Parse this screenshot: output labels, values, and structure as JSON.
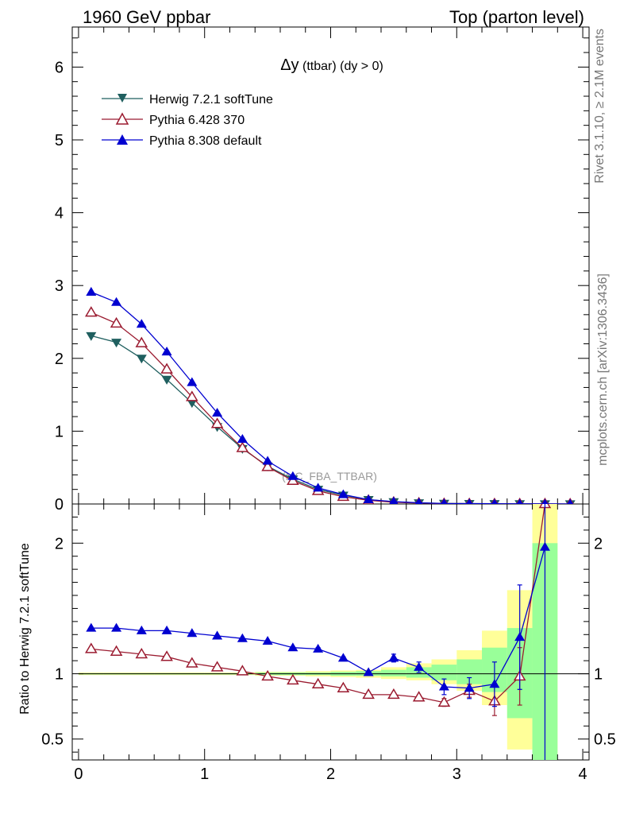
{
  "header": {
    "left": "1960 GeV ppbar",
    "right": "Top (parton level)"
  },
  "side_labels": {
    "rivet": "Rivet 3.1.10, ≥ 2.1M events",
    "mcplots": "mcplots.cern.ch [arXiv:1306.3436]"
  },
  "chart_data": [
    {
      "type": "line",
      "title_main": "Δy",
      "title_rest": " (ttbar) (dy > 0)",
      "watermark": "(MC_FBA_TTBAR)",
      "xlim": [
        -0.05,
        4.05
      ],
      "ylim": [
        0,
        6.55
      ],
      "yticks": [
        0,
        1,
        2,
        3,
        4,
        5,
        6
      ],
      "x": [
        0.1,
        0.3,
        0.5,
        0.7,
        0.9,
        1.1,
        1.3,
        1.5,
        1.7,
        1.9,
        2.1,
        2.3,
        2.5,
        2.7,
        2.9,
        3.1,
        3.3,
        3.5,
        3.7,
        3.9
      ],
      "series": [
        {
          "name": "Herwig 7.2.1 softTune",
          "color": "#1f5f5f",
          "marker": "triangle-down-filled",
          "values": [
            2.31,
            2.22,
            2.0,
            1.71,
            1.39,
            1.06,
            0.76,
            0.52,
            0.34,
            0.2,
            0.12,
            0.06,
            0.03,
            0.015,
            0.008,
            0.005,
            0.003,
            0.002,
            0.001,
            0.0005
          ]
        },
        {
          "name": "Pythia 6.428 370",
          "color": "#9b1b30",
          "marker": "triangle-up-open",
          "values": [
            2.63,
            2.48,
            2.21,
            1.85,
            1.47,
            1.1,
            0.77,
            0.51,
            0.32,
            0.18,
            0.1,
            0.05,
            0.024,
            0.012,
            0.005,
            0.003,
            0.002,
            0.001,
            0.001,
            0.0005
          ]
        },
        {
          "name": "Pythia 8.308 default",
          "color": "#0000d0",
          "marker": "triangle-up-filled",
          "values": [
            2.91,
            2.77,
            2.47,
            2.09,
            1.67,
            1.25,
            0.89,
            0.59,
            0.38,
            0.22,
            0.13,
            0.06,
            0.033,
            0.016,
            0.007,
            0.005,
            0.003,
            0.002,
            0.001,
            0.0005
          ]
        }
      ]
    },
    {
      "type": "line",
      "ylabel": "Ratio to Herwig 7.2.1 softTune",
      "xlim": [
        -0.05,
        4.05
      ],
      "ylim": [
        0.34,
        2.3
      ],
      "yticks": [
        0.5,
        1,
        2
      ],
      "xticks": [
        0,
        1,
        2,
        3,
        4
      ],
      "reference": 1,
      "bands": {
        "x_edges": [
          0.0,
          0.2,
          0.4,
          0.6,
          0.8,
          1.0,
          1.2,
          1.4,
          1.6,
          1.8,
          2.0,
          2.2,
          2.4,
          2.6,
          2.8,
          3.0,
          3.2,
          3.4,
          3.6,
          3.8
        ],
        "yellow_lo": [
          0.99,
          0.99,
          0.99,
          0.99,
          0.99,
          0.99,
          0.99,
          0.985,
          0.985,
          0.98,
          0.975,
          0.97,
          0.96,
          0.95,
          0.92,
          0.87,
          0.76,
          0.42,
          0.3
        ],
        "yellow_hi": [
          1.01,
          1.01,
          1.01,
          1.01,
          1.01,
          1.01,
          1.01,
          1.015,
          1.015,
          1.02,
          1.025,
          1.03,
          1.05,
          1.08,
          1.11,
          1.18,
          1.33,
          1.64,
          2.3
        ],
        "green_lo": [
          0.995,
          0.995,
          0.995,
          0.995,
          0.995,
          0.995,
          0.995,
          0.99,
          0.99,
          0.99,
          0.985,
          0.985,
          0.98,
          0.97,
          0.95,
          0.92,
          0.86,
          0.66,
          0.3
        ],
        "green_hi": [
          1.005,
          1.005,
          1.005,
          1.005,
          1.005,
          1.005,
          1.005,
          1.01,
          1.01,
          1.01,
          1.015,
          1.02,
          1.03,
          1.05,
          1.07,
          1.11,
          1.2,
          1.35,
          2.0
        ]
      },
      "x": [
        0.1,
        0.3,
        0.5,
        0.7,
        0.9,
        1.1,
        1.3,
        1.5,
        1.7,
        1.9,
        2.1,
        2.3,
        2.5,
        2.7,
        2.9,
        3.1,
        3.3,
        3.5,
        3.7
      ],
      "series": [
        {
          "name": "Pythia 6.428 370",
          "color": "#9b1b30",
          "marker": "triangle-up-open",
          "values": [
            1.19,
            1.17,
            1.15,
            1.13,
            1.08,
            1.05,
            1.02,
            0.98,
            0.95,
            0.92,
            0.89,
            0.84,
            0.84,
            0.82,
            0.78,
            0.87,
            0.79,
            0.98,
            2.3
          ],
          "err": [
            0,
            0,
            0,
            0,
            0,
            0,
            0,
            0,
            0,
            0,
            0,
            0,
            0,
            0,
            0.03,
            0.05,
            0.11,
            0.22,
            0
          ]
        },
        {
          "name": "Pythia 8.308 default",
          "color": "#0000d0",
          "marker": "triangle-up-filled",
          "values": [
            1.35,
            1.35,
            1.33,
            1.33,
            1.31,
            1.29,
            1.27,
            1.25,
            1.2,
            1.19,
            1.12,
            1.01,
            1.12,
            1.05,
            0.9,
            0.89,
            0.92,
            1.28,
            1.97
          ],
          "err": [
            0,
            0,
            0,
            0,
            0,
            0,
            0,
            0,
            0,
            0.01,
            0.01,
            0.01,
            0.03,
            0.04,
            0.06,
            0.08,
            0.17,
            0.4,
            1.7
          ]
        }
      ]
    }
  ]
}
